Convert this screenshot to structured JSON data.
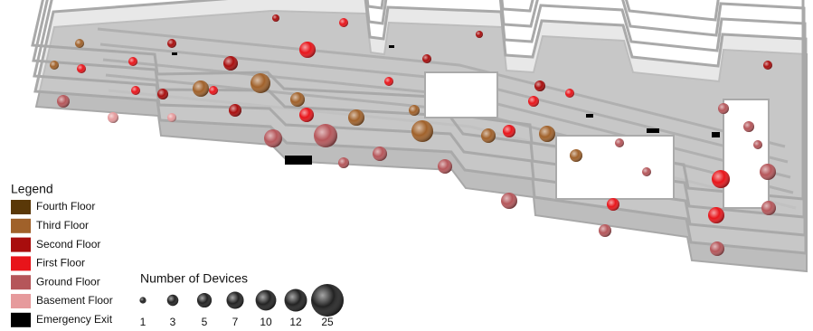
{
  "legend": {
    "title": "Legend",
    "items": [
      {
        "label": "Fourth Floor",
        "color": "#5a3808"
      },
      {
        "label": "Third Floor",
        "color": "#a0612a"
      },
      {
        "label": "Second Floor",
        "color": "#a80d0d"
      },
      {
        "label": "First Floor",
        "color": "#e8141a"
      },
      {
        "label": "Ground Floor",
        "color": "#b5565a"
      },
      {
        "label": "Basement Floor",
        "color": "#e69a9c"
      },
      {
        "label": "Emergency Exit",
        "color": "#000000"
      }
    ]
  },
  "size_legend": {
    "title": "Number of Devices",
    "values": [
      1,
      3,
      5,
      7,
      10,
      12,
      25
    ]
  }
}
